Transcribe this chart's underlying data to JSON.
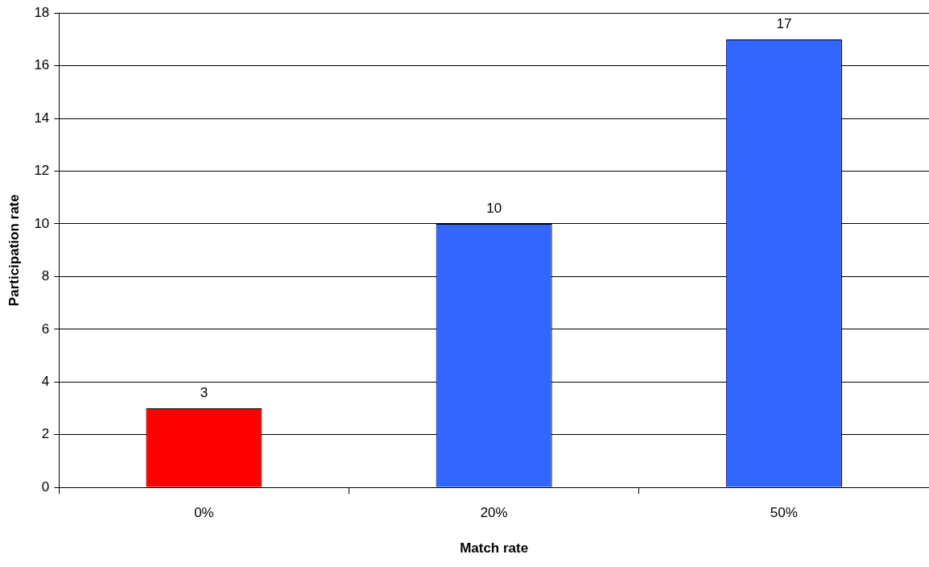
{
  "chart_data": {
    "type": "bar",
    "xlabel": "Match rate",
    "ylabel": "Participation rate",
    "categories": [
      "0%",
      "20%",
      "50%"
    ],
    "values": [
      3,
      10,
      17
    ],
    "colors": [
      "#ff0000",
      "#3366ff",
      "#3366ff"
    ],
    "ylim": [
      0,
      18
    ],
    "yticks": [
      0,
      2,
      4,
      6,
      8,
      10,
      12,
      14,
      16,
      18
    ],
    "grid": "y",
    "legend": false,
    "data_labels": true
  }
}
